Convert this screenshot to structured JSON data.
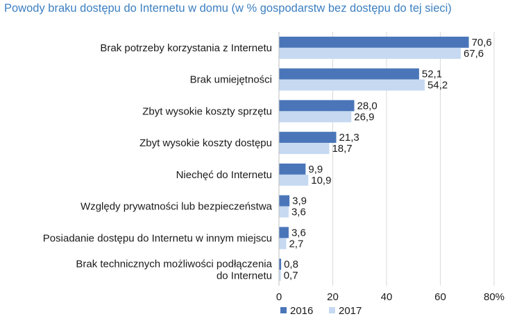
{
  "chart_data": {
    "type": "bar",
    "orientation": "horizontal",
    "title": "Powody braku dostępu do Internetu w domu (w % gospodarstw bez dostępu do tej sieci)",
    "categories": [
      "Brak potrzeby korzystania z Internetu",
      "Brak umiejętności",
      "Zbyt wysokie koszty sprzętu",
      "Zbyt wysokie koszty dostępu",
      "Niechęć do Internetu",
      "Względy prywatności lub bezpieczeństwa",
      "Posiadanie dostępu do Internetu w innym miejscu",
      "Brak technicznych możliwości podłączenia do Internetu"
    ],
    "category_lines": [
      [
        "Brak potrzeby korzystania z Internetu"
      ],
      [
        "Brak umiejętności"
      ],
      [
        "Zbyt wysokie koszty sprzętu"
      ],
      [
        "Zbyt wysokie koszty dostępu"
      ],
      [
        "Niechęć do Internetu"
      ],
      [
        "Względy prywatności lub bezpieczeństwa"
      ],
      [
        "Posiadanie dostępu do Internetu w innym miejscu"
      ],
      [
        "Brak technicznych możliwości podłączenia",
        "do Internetu"
      ]
    ],
    "series": [
      {
        "name": "2016",
        "color": "#4a76b9",
        "values": [
          70.6,
          52.1,
          28.0,
          21.3,
          9.9,
          3.9,
          3.6,
          0.8
        ],
        "labels": [
          "70,6",
          "52,1",
          "28,0",
          "21,3",
          "9,9",
          "3,9",
          "3,6",
          "0,8"
        ]
      },
      {
        "name": "2017",
        "color": "#c6d9f1",
        "values": [
          67.6,
          54.2,
          26.9,
          18.7,
          10.9,
          3.6,
          2.7,
          0.7
        ],
        "labels": [
          "67,6",
          "54,2",
          "26,9",
          "18,7",
          "10,9",
          "3,6",
          "2,7",
          "0,7"
        ]
      }
    ],
    "xlim": [
      0,
      80
    ],
    "ticks": [
      0,
      20,
      40,
      60,
      80
    ],
    "tick_labels": [
      "0",
      "20",
      "40",
      "60",
      "80%"
    ],
    "grid": true,
    "legend": [
      "2016",
      "2017"
    ],
    "legend_position": "bottom"
  },
  "colors": {
    "title": "#3c7fc1",
    "grid": "#d9d9d9",
    "axis": "#bfbfbf"
  }
}
